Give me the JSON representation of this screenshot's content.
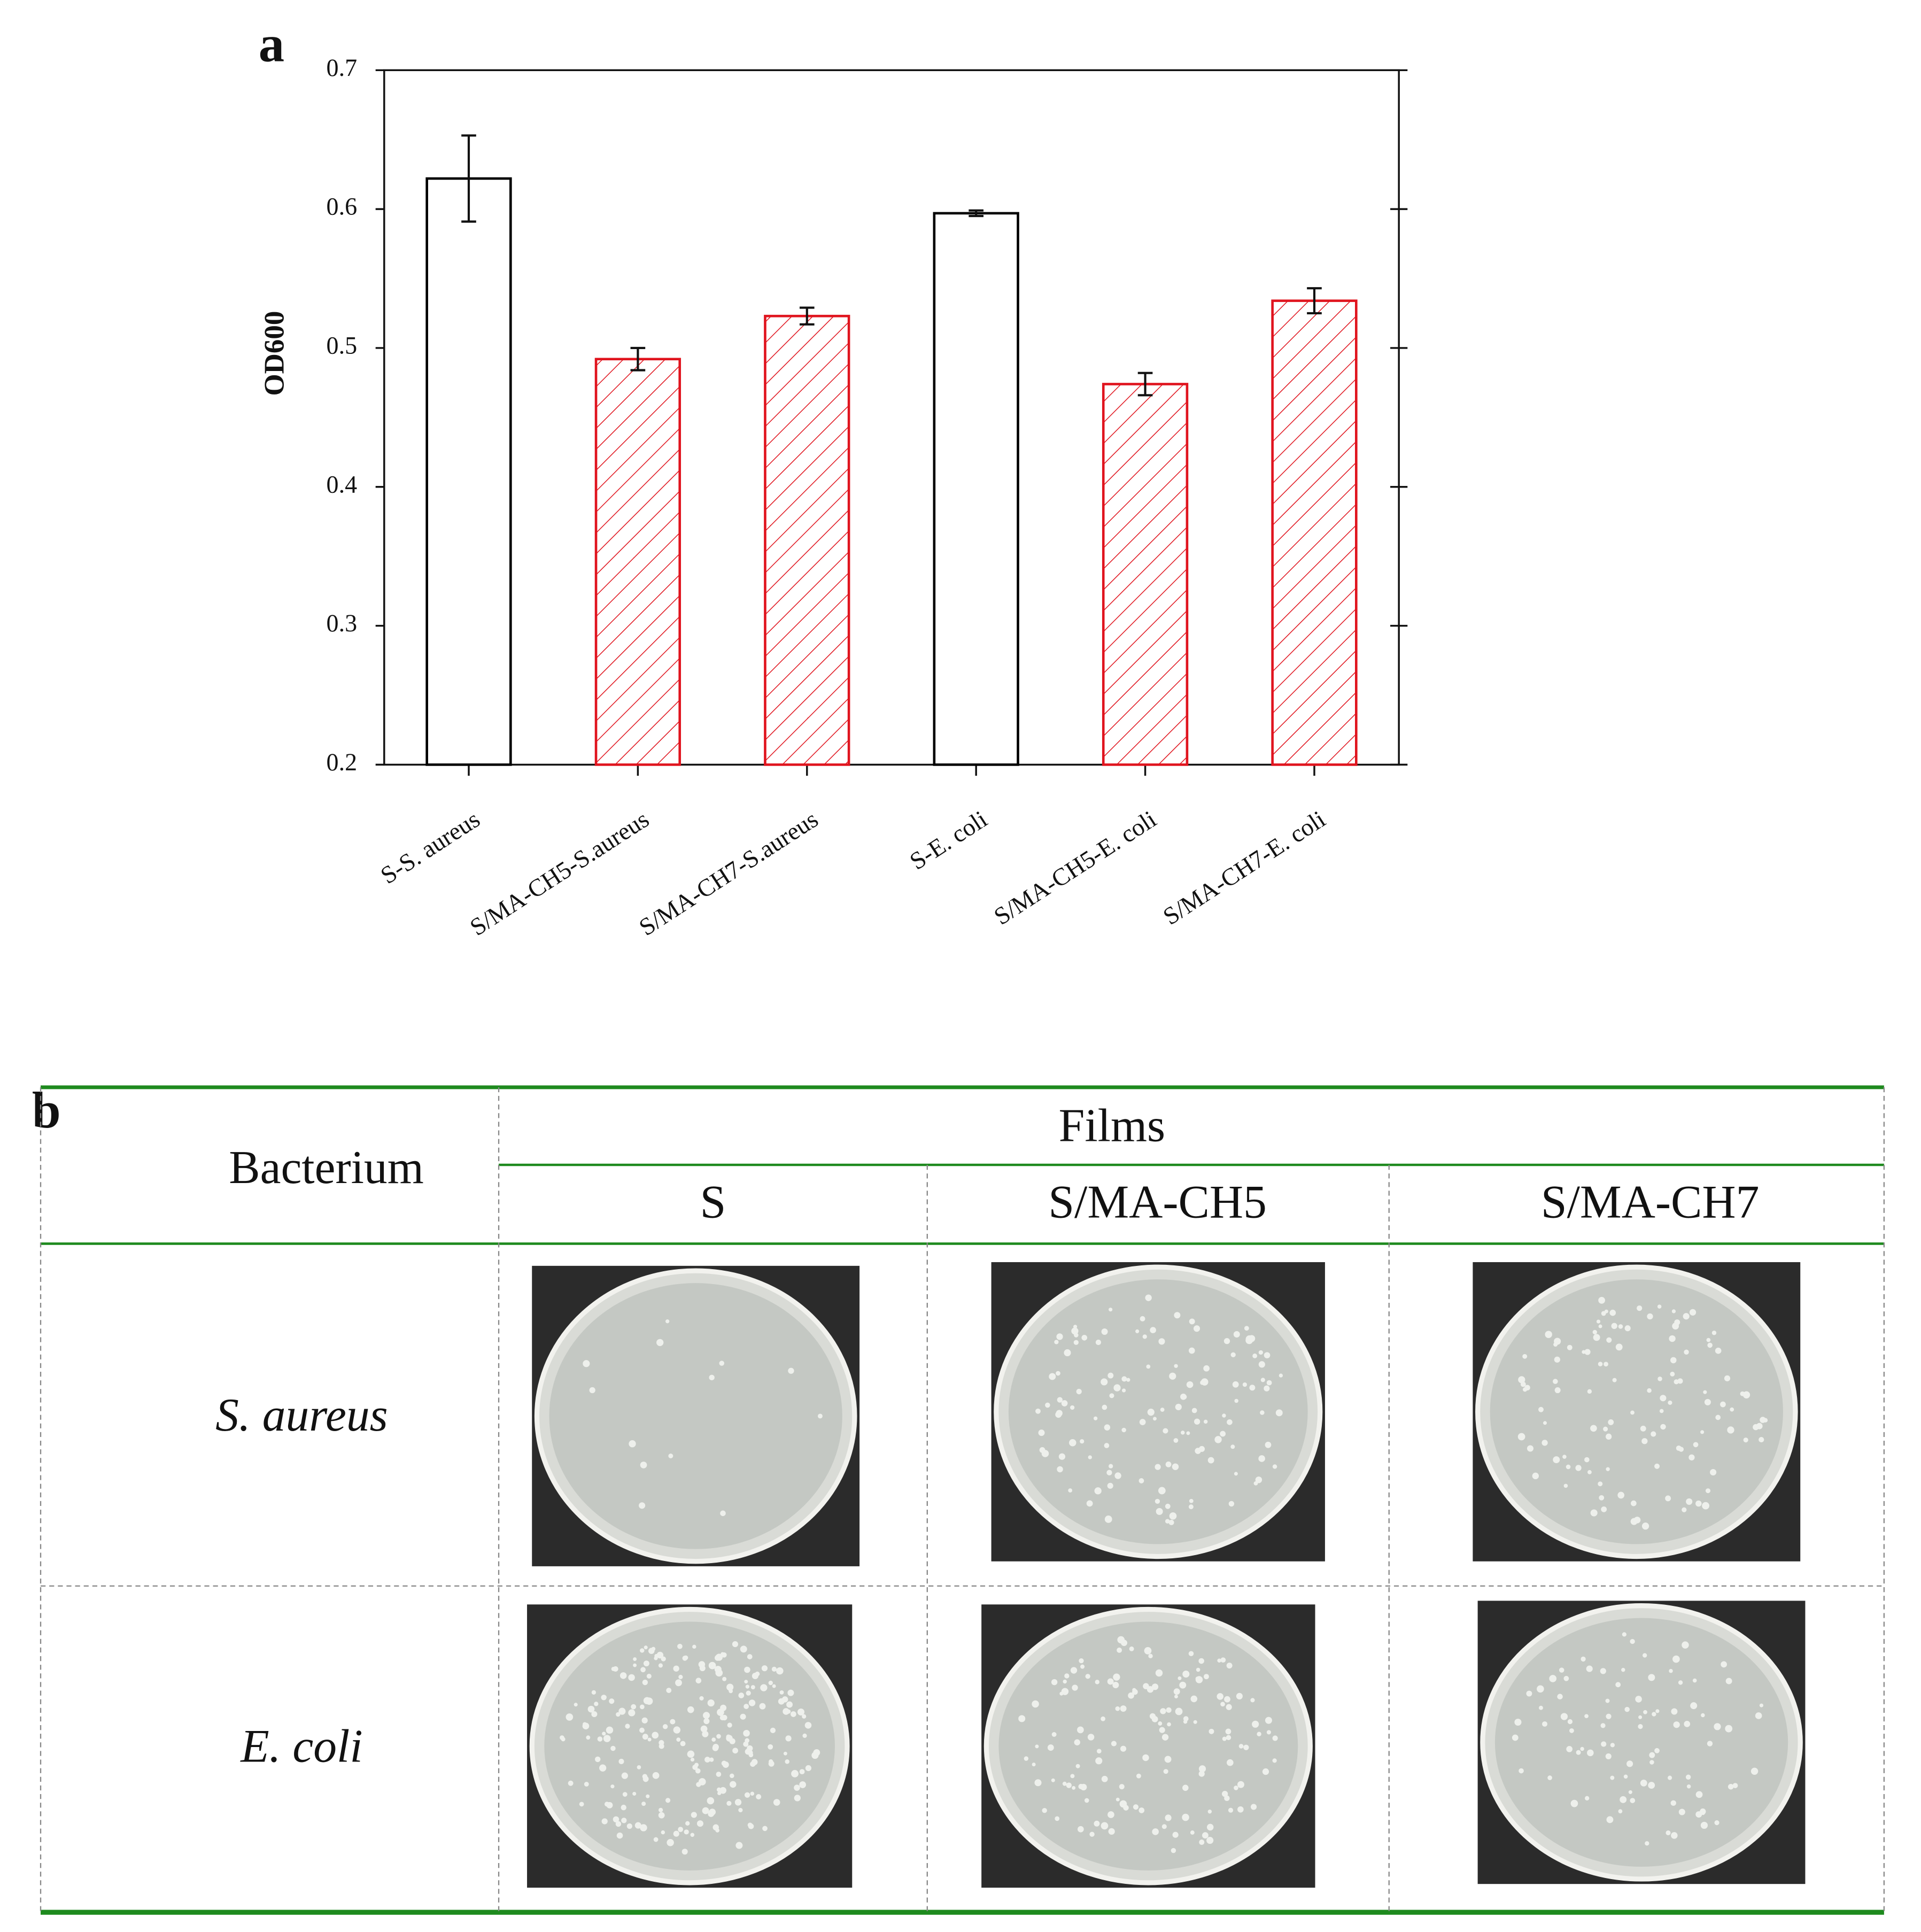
{
  "panel_labels": [
    "a",
    "b"
  ],
  "chart_data": {
    "type": "bar",
    "ylabel": "OD600",
    "categories": [
      "S-S. aureus",
      "S/MA-CH5-S.aureus",
      "S/MA-CH7-S.aureus",
      "S-E. coli",
      "S/MA-CH5-E. coli",
      "S/MA-CH7-E. coli"
    ],
    "values": [
      0.622,
      0.492,
      0.523,
      0.597,
      0.474,
      0.534
    ],
    "errors": [
      0.031,
      0.008,
      0.006,
      0.002,
      0.008,
      0.009
    ],
    "colors": [
      "#000000",
      "#e0141e",
      "#e0141e",
      "#000000",
      "#e0141e",
      "#e0141e"
    ],
    "hatched": [
      false,
      true,
      true,
      false,
      true,
      true
    ],
    "ylim": [
      0.2,
      0.7
    ],
    "yticks": [
      0.2,
      0.3,
      0.4,
      0.5,
      0.6,
      0.7
    ],
    "grid": false
  },
  "table": {
    "row_header": "Bacterium",
    "group": "Films",
    "columns": [
      "S",
      "S/MA-CH5",
      "S/MA-CH7"
    ],
    "rows": [
      "S. aureus",
      "E. coli"
    ]
  }
}
